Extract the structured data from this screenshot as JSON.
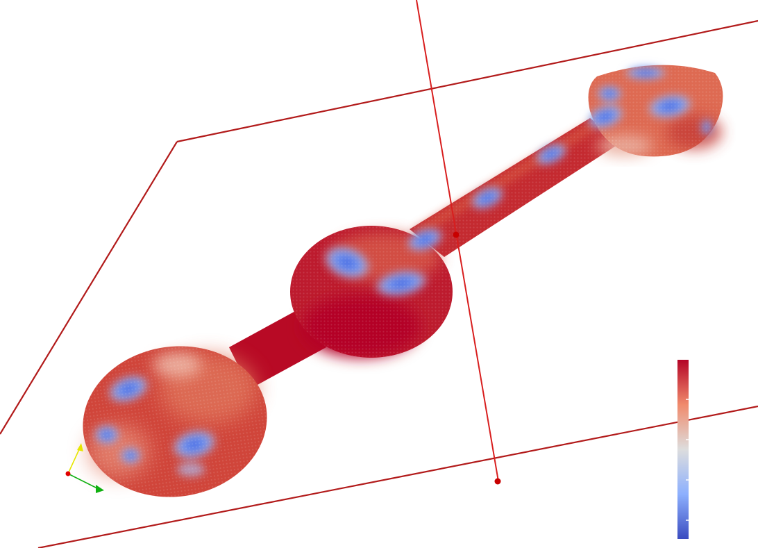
{
  "scene": {
    "colors": {
      "background": "#ffffff",
      "frame": "#b21a1a",
      "probe_line": "#d81e1e",
      "probe_point": "#c80000",
      "field_high": "#b40426",
      "field_mid": "#dddddd",
      "field_low": "#3b4cc0",
      "axis_x": "#e00000",
      "axis_y": "#e6e600",
      "axis_z": "#10b010"
    },
    "colormap": "coolwarm",
    "colorbar_ticks": 5,
    "icons": {
      "orientation": "orientation-axes-icon",
      "probe_handle": "probe-handle-icon"
    }
  }
}
